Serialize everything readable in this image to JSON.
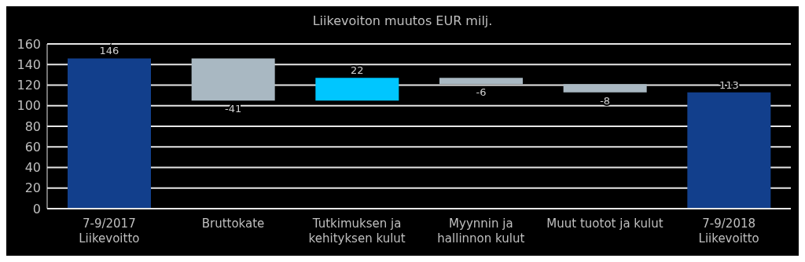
{
  "chart_data": {
    "type": "bar",
    "title": "Liikevoiton muutos EUR milj.",
    "categories": [
      "7-9/2017\nLiikevoitto",
      "Bruttokate",
      "Tutkimuksen ja\nkehityksen kulut",
      "Myynnin ja\nhallinnon kulut",
      "Muut tuotot ja kulut",
      "7-9/2018\nLiikevoitto"
    ],
    "values": [
      146,
      -41,
      22,
      -6,
      -8,
      113
    ],
    "base": [
      0,
      146,
      105,
      127,
      121,
      0
    ],
    "colors": [
      "#123f8c",
      "#a9b8c2",
      "#00c6ff",
      "#a9b8c2",
      "#a9b8c2",
      "#123f8c"
    ],
    "data_labels": true,
    "ylim": [
      0,
      160
    ],
    "yticks": [
      0,
      20,
      40,
      60,
      80,
      100,
      120,
      140,
      160
    ],
    "grid": "y"
  }
}
